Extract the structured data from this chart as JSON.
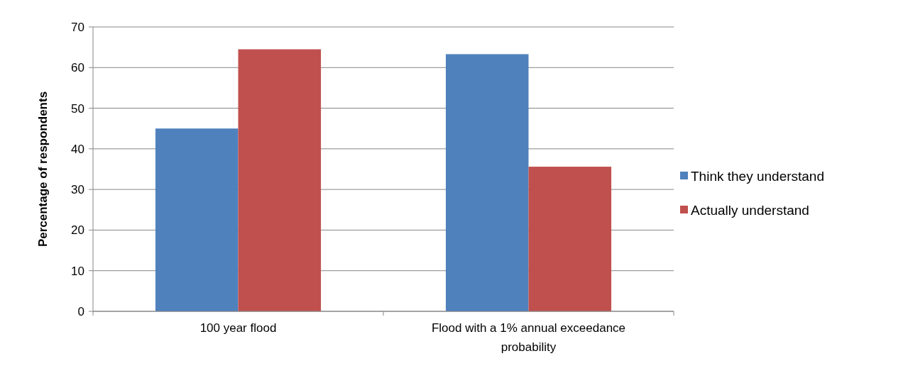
{
  "chart_data": {
    "type": "bar",
    "ylabel": "Percentage of respondents",
    "categories": [
      "100 year flood",
      "Flood with a 1% annual exceedance probability"
    ],
    "series": [
      {
        "name": "Think they understand",
        "color": "#4f81bd",
        "values": [
          45,
          63.3
        ]
      },
      {
        "name": "Actually understand",
        "color": "#c0504d",
        "values": [
          64.5,
          35.6
        ]
      }
    ],
    "ylim": [
      0,
      70
    ],
    "yticks": [
      0,
      10,
      20,
      30,
      40,
      50,
      60,
      70
    ],
    "grid": "y",
    "legend": "right"
  }
}
